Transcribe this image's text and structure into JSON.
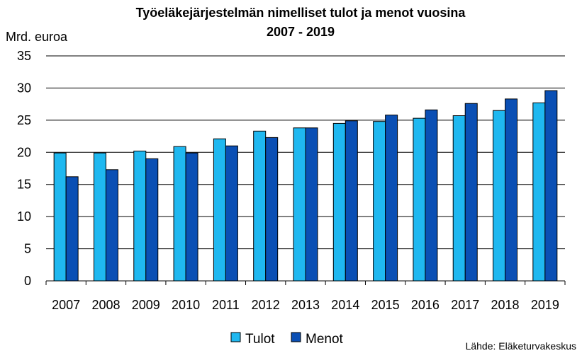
{
  "chart_data": {
    "type": "bar",
    "title_line1": "Työeläkejärjestelmän nimelliset tulot ja menot vuosina",
    "title_line2": "2007 - 2019",
    "ylabel": "Mrd. euroa",
    "xlabel": "",
    "ylim": [
      0,
      35
    ],
    "yticks": [
      0,
      5,
      10,
      15,
      20,
      25,
      30,
      35
    ],
    "categories": [
      "2007",
      "2008",
      "2009",
      "2010",
      "2011",
      "2012",
      "2013",
      "2014",
      "2015",
      "2016",
      "2017",
      "2018",
      "2019"
    ],
    "series": [
      {
        "name": "Tulot",
        "color": "#1fb8f0",
        "values": [
          19.9,
          19.9,
          20.2,
          20.9,
          22.1,
          23.3,
          23.8,
          24.5,
          24.8,
          25.3,
          25.7,
          26.5,
          27.7
        ]
      },
      {
        "name": "Menot",
        "color": "#0a4fb4",
        "values": [
          16.2,
          17.3,
          19.0,
          19.9,
          21.0,
          22.3,
          23.8,
          24.9,
          25.8,
          26.6,
          27.6,
          28.3,
          29.6
        ]
      }
    ],
    "grid": true,
    "legend_position": "bottom-center",
    "source": "Lähde: Eläketurvakeskus"
  }
}
